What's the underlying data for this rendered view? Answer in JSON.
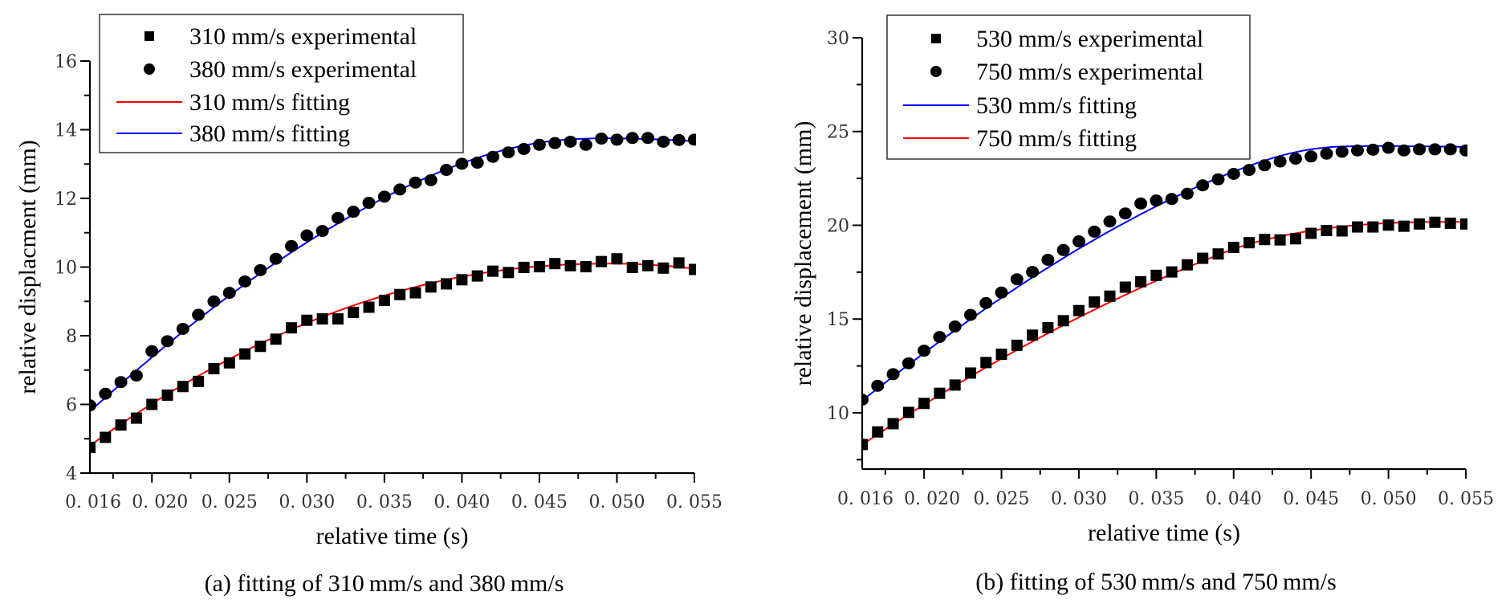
{
  "chart_data": [
    {
      "type": "scatter",
      "caption": "(a) fitting of 310 mm/s and 380 mm/s",
      "title": "",
      "xlabel": "relative time (s)",
      "ylabel": "relative displacment (mm)",
      "xlim": [
        0.016,
        0.055
      ],
      "ylim": [
        4,
        16
      ],
      "xticks": [
        0.016,
        0.02,
        0.025,
        0.03,
        0.035,
        0.04,
        0.045,
        0.05,
        0.055
      ],
      "xtick_labels": [
        "0. 016",
        "0. 020",
        "0. 025",
        "0. 030",
        "0. 035",
        "0. 040",
        "0. 045",
        "0. 050",
        "0. 055"
      ],
      "yticks": [
        4,
        6,
        8,
        10,
        12,
        14,
        16
      ],
      "ytick_labels": [
        "4",
        "6",
        "8",
        "10",
        "12",
        "14",
        "16"
      ],
      "grid": false,
      "legend_position": "top-left",
      "legend": [
        {
          "label": "310 mm/s experimental",
          "marker": "square",
          "color": "#000000"
        },
        {
          "label": "380 mm/s experimental",
          "marker": "circle",
          "color": "#000000"
        },
        {
          "label": "310 mm/s fitting",
          "marker": "line",
          "color": "#ff0000"
        },
        {
          "label": "380 mm/s fitting",
          "marker": "line",
          "color": "#0000ff"
        }
      ],
      "x": [
        0.016,
        0.017,
        0.018,
        0.019,
        0.02,
        0.021,
        0.022,
        0.023,
        0.024,
        0.025,
        0.026,
        0.027,
        0.028,
        0.029,
        0.03,
        0.031,
        0.032,
        0.033,
        0.034,
        0.035,
        0.036,
        0.037,
        0.038,
        0.039,
        0.04,
        0.041,
        0.042,
        0.043,
        0.044,
        0.045,
        0.046,
        0.047,
        0.048,
        0.049,
        0.05,
        0.051,
        0.052,
        0.053,
        0.054,
        0.055
      ],
      "series": [
        {
          "name": "310 mm/s experimental",
          "kind": "points",
          "marker": "square",
          "color": "#000000",
          "values": [
            4.75,
            5.04,
            5.4,
            5.6,
            6.0,
            6.27,
            6.52,
            6.67,
            7.04,
            7.21,
            7.47,
            7.69,
            7.9,
            8.23,
            8.45,
            8.49,
            8.49,
            8.68,
            8.83,
            9.03,
            9.2,
            9.25,
            9.42,
            9.51,
            9.63,
            9.74,
            9.88,
            9.84,
            9.99,
            10.01,
            10.1,
            10.04,
            10.01,
            10.16,
            10.24,
            9.99,
            10.04,
            9.97,
            10.12,
            9.93
          ]
        },
        {
          "name": "380 mm/s experimental",
          "kind": "points",
          "marker": "circle",
          "color": "#000000",
          "values": [
            5.97,
            6.31,
            6.65,
            6.84,
            7.55,
            7.84,
            8.2,
            8.61,
            9.0,
            9.25,
            9.58,
            9.91,
            10.24,
            10.61,
            10.92,
            11.05,
            11.43,
            11.61,
            11.87,
            12.05,
            12.26,
            12.46,
            12.53,
            12.83,
            13.01,
            13.04,
            13.21,
            13.34,
            13.44,
            13.56,
            13.61,
            13.65,
            13.56,
            13.74,
            13.71,
            13.76,
            13.76,
            13.65,
            13.7,
            13.71
          ]
        },
        {
          "name": "310 mm/s fitting",
          "kind": "line",
          "color": "#ff0000",
          "values": [
            4.8,
            5.12,
            5.43,
            5.73,
            6.02,
            6.3,
            6.57,
            6.83,
            7.08,
            7.32,
            7.55,
            7.77,
            7.98,
            8.18,
            8.37,
            8.55,
            8.72,
            8.88,
            9.03,
            9.17,
            9.3,
            9.42,
            9.53,
            9.63,
            9.72,
            9.8,
            9.87,
            9.93,
            9.98,
            10.02,
            10.05,
            10.08,
            10.09,
            10.1,
            10.1,
            10.09,
            10.07,
            10.04,
            10.0,
            9.95
          ]
        },
        {
          "name": "380 mm/s fitting",
          "kind": "line",
          "color": "#0000ff",
          "values": [
            5.8,
            6.2,
            6.6,
            6.99,
            7.37,
            7.75,
            8.12,
            8.48,
            8.83,
            9.17,
            9.5,
            9.82,
            10.13,
            10.43,
            10.72,
            11.0,
            11.27,
            11.53,
            11.78,
            12.02,
            12.25,
            12.46,
            12.66,
            12.85,
            13.02,
            13.18,
            13.32,
            13.44,
            13.54,
            13.62,
            13.68,
            13.72,
            13.74,
            13.75,
            13.75,
            13.74,
            13.73,
            13.71,
            13.69,
            13.66
          ]
        }
      ]
    },
    {
      "type": "scatter",
      "caption": "(b) fitting of 530 mm/s and 750 mm/s",
      "title": "",
      "xlabel": "relative time (s)",
      "ylabel": "relative displacement (mm)",
      "xlim": [
        0.016,
        0.055
      ],
      "ylim": [
        7,
        30
      ],
      "xticks": [
        0.016,
        0.02,
        0.025,
        0.03,
        0.035,
        0.04,
        0.045,
        0.05,
        0.055
      ],
      "xtick_labels": [
        "0. 016",
        "0. 020",
        "0. 025",
        "0. 030",
        "0. 035",
        "0. 040",
        "0. 045",
        "0. 050",
        "0. 055"
      ],
      "yticks": [
        10,
        15,
        20,
        25,
        30
      ],
      "ytick_labels": [
        "10",
        "15",
        "20",
        "25",
        "30"
      ],
      "grid": false,
      "legend_position": "top-left",
      "legend": [
        {
          "label": "530 mm/s experimental",
          "marker": "square",
          "color": "#000000"
        },
        {
          "label": "750 mm/s experimental",
          "marker": "circle",
          "color": "#000000"
        },
        {
          "label": "530 mm/s fitting",
          "marker": "line",
          "color": "#0000ff"
        },
        {
          "label": "750 mm/s fitting",
          "marker": "line",
          "color": "#ff0000"
        }
      ],
      "x": [
        0.016,
        0.017,
        0.018,
        0.019,
        0.02,
        0.021,
        0.022,
        0.023,
        0.024,
        0.025,
        0.026,
        0.027,
        0.028,
        0.029,
        0.03,
        0.031,
        0.032,
        0.033,
        0.034,
        0.035,
        0.036,
        0.037,
        0.038,
        0.039,
        0.04,
        0.041,
        0.042,
        0.043,
        0.044,
        0.045,
        0.046,
        0.047,
        0.048,
        0.049,
        0.05,
        0.051,
        0.052,
        0.053,
        0.054,
        0.055
      ],
      "series": [
        {
          "name": "530 mm/s experimental",
          "kind": "points",
          "marker": "square",
          "color": "#000000",
          "values": [
            8.31,
            8.98,
            9.42,
            10.02,
            10.5,
            11.04,
            11.48,
            12.12,
            12.68,
            13.12,
            13.6,
            14.14,
            14.54,
            14.91,
            15.45,
            15.91,
            16.22,
            16.7,
            16.99,
            17.33,
            17.51,
            17.89,
            18.24,
            18.47,
            18.82,
            19.07,
            19.24,
            19.22,
            19.28,
            19.57,
            19.72,
            19.7,
            19.91,
            19.91,
            20.01,
            19.95,
            20.07,
            20.16,
            20.11,
            20.07
          ]
        },
        {
          "name": "750 mm/s experimental",
          "kind": "points",
          "marker": "circle",
          "color": "#000000",
          "values": [
            10.7,
            11.44,
            12.06,
            12.64,
            13.31,
            14.04,
            14.6,
            15.22,
            15.85,
            16.41,
            17.12,
            17.51,
            18.16,
            18.68,
            19.14,
            19.66,
            20.2,
            20.63,
            21.16,
            21.32,
            21.4,
            21.68,
            22.13,
            22.45,
            22.74,
            22.95,
            23.2,
            23.4,
            23.55,
            23.67,
            23.82,
            23.92,
            23.99,
            24.03,
            24.13,
            23.99,
            24.05,
            24.05,
            24.05,
            23.99
          ]
        },
        {
          "name": "750 mm/s fitting (red)",
          "kind": "line",
          "color": "#ff0000",
          "values": [
            8.3,
            8.85,
            9.39,
            9.92,
            10.44,
            10.95,
            11.45,
            11.94,
            12.42,
            12.89,
            13.35,
            13.8,
            14.24,
            14.67,
            15.09,
            15.5,
            15.9,
            16.29,
            16.67,
            17.04,
            17.4,
            17.75,
            18.09,
            18.42,
            18.74,
            19.0,
            19.22,
            19.41,
            19.57,
            19.71,
            19.83,
            19.93,
            20.01,
            20.07,
            20.12,
            20.15,
            20.17,
            20.18,
            20.18,
            20.18
          ]
        },
        {
          "name": "530 mm/s fitting (blue)",
          "kind": "line",
          "color": "#0000ff",
          "values": [
            10.65,
            11.3,
            11.94,
            12.57,
            13.19,
            13.8,
            14.4,
            14.99,
            15.57,
            16.13,
            16.68,
            17.22,
            17.74,
            18.25,
            18.75,
            19.23,
            19.7,
            20.15,
            20.59,
            21.01,
            21.42,
            21.81,
            22.18,
            22.53,
            22.86,
            23.17,
            23.45,
            23.7,
            23.9,
            24.05,
            24.15,
            24.2,
            24.22,
            24.23,
            24.23,
            24.22,
            24.21,
            24.2,
            24.19,
            24.18
          ]
        }
      ]
    }
  ]
}
